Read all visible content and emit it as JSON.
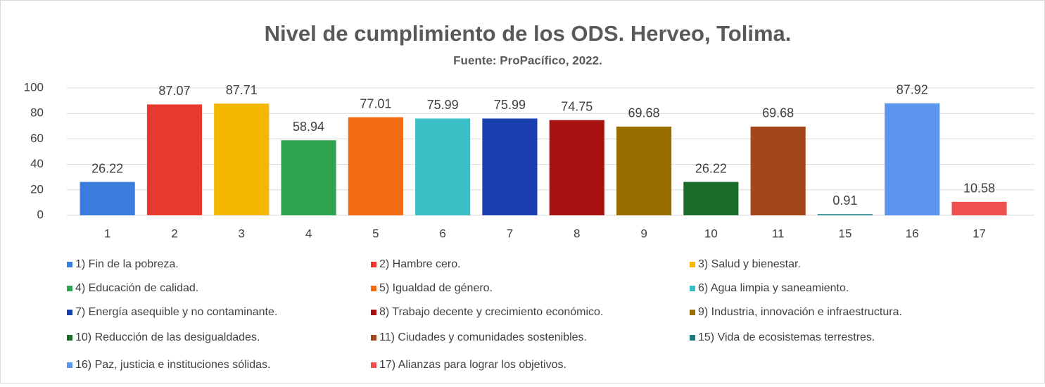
{
  "chart_data": {
    "type": "bar",
    "title": "Nivel de cumplimiento de los ODS. Herveo, Tolima.",
    "subtitle": "Fuente: ProPacífico, 2022.",
    "categories": [
      "1",
      "2",
      "3",
      "4",
      "5",
      "6",
      "7",
      "8",
      "9",
      "10",
      "11",
      "15",
      "16",
      "17"
    ],
    "values": [
      26.22,
      87.07,
      87.71,
      58.94,
      77.01,
      75.99,
      75.99,
      74.75,
      69.68,
      26.22,
      69.68,
      0.91,
      87.92,
      10.58
    ],
    "colors": [
      "#3b7ddd",
      "#e8392f",
      "#f5b800",
      "#2ea44f",
      "#f36b12",
      "#3bbfc7",
      "#1a3fae",
      "#a5120f",
      "#9a6d00",
      "#1b6b2b",
      "#a3461a",
      "#1f7a7a",
      "#5b95ef",
      "#ee5050"
    ],
    "legend": [
      "1) Fin de la pobreza.",
      "2) Hambre cero.",
      "3) Salud y bienestar.",
      "4) Educación de calidad.",
      "5) Igualdad de género.",
      "6) Agua limpia y saneamiento.",
      "7) Energía asequible y no contaminante.",
      "8) Trabajo decente y crecimiento económico.",
      "9) Industria, innovación e infraestructura.",
      "10) Reducción de las desigualdades.",
      "11) Ciudades y comunidades sostenibles.",
      "15) Vida de ecosistemas terrestres.",
      "16) Paz, justicia e instituciones sólidas.",
      "17) Alianzas para lograr los objetivos."
    ],
    "ylim": [
      0,
      100
    ],
    "yticks": [
      0,
      20,
      40,
      60,
      80,
      100
    ],
    "grid": true
  }
}
